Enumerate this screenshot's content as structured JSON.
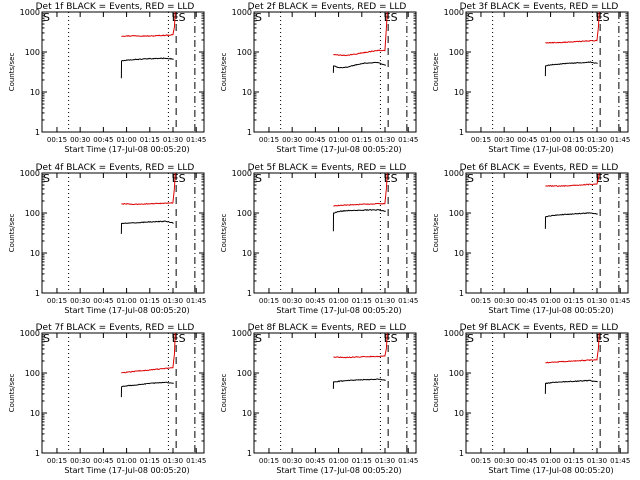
{
  "figure": {
    "background": "#ffffff",
    "axis_color": "#000000",
    "colors": {
      "events": "#000000",
      "lld": "#dd0000"
    }
  },
  "chart_data": [
    {
      "type": "line",
      "panel": 1,
      "title": "Det 1f BLACK = Events, RED = LLD",
      "xlabel": "Start Time (17-Jul-08 00:05:20)",
      "ylabel": "Counts/sec",
      "x_unit": "minutes after 00:05:20",
      "xlim": [
        0,
        104.7
      ],
      "ylim": [
        1,
        1000
      ],
      "yscale": "log",
      "x_tick_labels": [
        "00:15",
        "00:30",
        "00:45",
        "01:00",
        "01:15",
        "01:30",
        "01:45"
      ],
      "y_tick_labels": [
        "1",
        "10",
        "100",
        "1000"
      ],
      "markers": [
        {
          "x": 0,
          "label": "S"
        },
        {
          "x": 87.7,
          "label": "ES"
        }
      ],
      "vlines": [
        {
          "x": 0,
          "style": "dashed"
        },
        {
          "x": 17.2,
          "style": "dotted"
        },
        {
          "x": 81.7,
          "style": "dotted"
        },
        {
          "x": 86.7,
          "style": "dashed"
        },
        {
          "x": 98.8,
          "style": "dashdot"
        }
      ],
      "series": [
        {
          "name": "LLD",
          "color": "red",
          "x": [
            51.3,
            60,
            70,
            80,
            84.6,
            85.6,
            86.1
          ],
          "y": [
            250,
            255,
            250,
            262,
            270,
            420,
            1000
          ]
        },
        {
          "name": "Events",
          "color": "black",
          "x": [
            51.3,
            51.4,
            55,
            60,
            70,
            80,
            85.1
          ],
          "y": [
            22,
            60,
            62,
            65,
            68,
            70,
            66
          ]
        }
      ]
    },
    {
      "type": "line",
      "panel": 2,
      "title": "Det 2f BLACK = Events, RED = LLD",
      "xlabel": "Start Time (17-Jul-08 00:05:20)",
      "ylabel": "Counts/sec",
      "x_unit": "minutes after 00:05:20",
      "xlim": [
        0,
        104.7
      ],
      "ylim": [
        1,
        1000
      ],
      "yscale": "log",
      "x_tick_labels": [
        "00:15",
        "00:30",
        "00:45",
        "01:00",
        "01:15",
        "01:30",
        "01:45"
      ],
      "y_tick_labels": [
        "1",
        "10",
        "100",
        "1000"
      ],
      "markers": [
        {
          "x": 0,
          "label": "S"
        },
        {
          "x": 87.7,
          "label": "ES"
        }
      ],
      "vlines": [
        {
          "x": 0,
          "style": "dashed"
        },
        {
          "x": 17.2,
          "style": "dotted"
        },
        {
          "x": 81.7,
          "style": "dotted"
        },
        {
          "x": 86.7,
          "style": "dashed"
        },
        {
          "x": 98.8,
          "style": "dashdot"
        }
      ],
      "series": [
        {
          "name": "LLD",
          "color": "red",
          "x": [
            51.3,
            60,
            70,
            80,
            84.6,
            85.6,
            86.1
          ],
          "y": [
            85,
            82,
            95,
            110,
            108,
            420,
            1000
          ]
        },
        {
          "name": "Events",
          "color": "black",
          "x": [
            51.3,
            51.4,
            55,
            60,
            70,
            80,
            85.1
          ],
          "y": [
            30,
            45,
            40,
            42,
            52,
            55,
            46
          ]
        }
      ]
    },
    {
      "type": "line",
      "panel": 3,
      "title": "Det 3f BLACK = Events, RED = LLD",
      "xlabel": "Start Time (17-Jul-08 00:05:20)",
      "ylabel": "Counts/sec",
      "x_unit": "minutes after 00:05:20",
      "xlim": [
        0,
        104.7
      ],
      "ylim": [
        1,
        1000
      ],
      "yscale": "log",
      "x_tick_labels": [
        "00:15",
        "00:30",
        "00:45",
        "01:00",
        "01:15",
        "01:30",
        "01:45"
      ],
      "y_tick_labels": [
        "1",
        "10",
        "100",
        "1000"
      ],
      "markers": [
        {
          "x": 0,
          "label": "S"
        },
        {
          "x": 87.7,
          "label": "ES"
        }
      ],
      "vlines": [
        {
          "x": 0,
          "style": "dashed"
        },
        {
          "x": 17.2,
          "style": "dotted"
        },
        {
          "x": 81.7,
          "style": "dotted"
        },
        {
          "x": 86.7,
          "style": "dashed"
        },
        {
          "x": 98.8,
          "style": "dashdot"
        }
      ],
      "series": [
        {
          "name": "LLD",
          "color": "red",
          "x": [
            51.3,
            60,
            70,
            80,
            84.6,
            85.6,
            86.1
          ],
          "y": [
            170,
            172,
            180,
            190,
            192,
            420,
            1000
          ]
        },
        {
          "name": "Events",
          "color": "black",
          "x": [
            51.3,
            51.4,
            55,
            60,
            70,
            80,
            85.1
          ],
          "y": [
            25,
            45,
            48,
            50,
            53,
            56,
            52
          ]
        }
      ]
    },
    {
      "type": "line",
      "panel": 4,
      "title": "Det 4f BLACK = Events, RED = LLD",
      "xlabel": "Start Time (17-Jul-08 00:05:20)",
      "ylabel": "Counts/sec",
      "x_unit": "minutes after 00:05:20",
      "xlim": [
        0,
        104.7
      ],
      "ylim": [
        1,
        1000
      ],
      "yscale": "log",
      "x_tick_labels": [
        "00:15",
        "00:30",
        "00:45",
        "01:00",
        "01:15",
        "01:30",
        "01:45"
      ],
      "y_tick_labels": [
        "1",
        "10",
        "100",
        "1000"
      ],
      "markers": [
        {
          "x": 0,
          "label": "S"
        },
        {
          "x": 87.7,
          "label": "ES"
        }
      ],
      "vlines": [
        {
          "x": 0,
          "style": "dashed"
        },
        {
          "x": 17.2,
          "style": "dotted"
        },
        {
          "x": 81.7,
          "style": "dotted"
        },
        {
          "x": 86.7,
          "style": "dashed"
        },
        {
          "x": 98.8,
          "style": "dashdot"
        }
      ],
      "series": [
        {
          "name": "LLD",
          "color": "red",
          "x": [
            51.3,
            60,
            70,
            80,
            84.6,
            85.6,
            86.1
          ],
          "y": [
            170,
            165,
            170,
            175,
            180,
            420,
            1000
          ]
        },
        {
          "name": "Events",
          "color": "black",
          "x": [
            51.3,
            51.4,
            55,
            60,
            70,
            80,
            85.1
          ],
          "y": [
            30,
            55,
            55,
            57,
            60,
            62,
            56
          ]
        }
      ]
    },
    {
      "type": "line",
      "panel": 5,
      "title": "Det 5f BLACK = Events, RED = LLD",
      "xlabel": "Start Time (17-Jul-08 00:05:20)",
      "ylabel": "Counts/sec",
      "x_unit": "minutes after 00:05:20",
      "xlim": [
        0,
        104.7
      ],
      "ylim": [
        1,
        1000
      ],
      "yscale": "log",
      "x_tick_labels": [
        "00:15",
        "00:30",
        "00:45",
        "01:00",
        "01:15",
        "01:30",
        "01:45"
      ],
      "y_tick_labels": [
        "1",
        "10",
        "100",
        "1000"
      ],
      "markers": [
        {
          "x": 0,
          "label": "S"
        },
        {
          "x": 87.7,
          "label": "ES"
        }
      ],
      "vlines": [
        {
          "x": 0,
          "style": "dashed"
        },
        {
          "x": 17.2,
          "style": "dotted"
        },
        {
          "x": 81.7,
          "style": "dotted"
        },
        {
          "x": 86.7,
          "style": "dashed"
        },
        {
          "x": 98.8,
          "style": "dashdot"
        }
      ],
      "series": [
        {
          "name": "LLD",
          "color": "red",
          "x": [
            51.3,
            60,
            70,
            80,
            84.6,
            85.6,
            86.1
          ],
          "y": [
            150,
            158,
            165,
            170,
            172,
            420,
            1000
          ]
        },
        {
          "name": "Events",
          "color": "black",
          "x": [
            51.3,
            51.4,
            55,
            60,
            70,
            80,
            85.1
          ],
          "y": [
            35,
            100,
            110,
            115,
            118,
            120,
            110
          ]
        }
      ]
    },
    {
      "type": "line",
      "panel": 6,
      "title": "Det 6f BLACK = Events, RED = LLD",
      "xlabel": "Start Time (17-Jul-08 00:05:20)",
      "ylabel": "Counts/sec",
      "x_unit": "minutes after 00:05:20",
      "xlim": [
        0,
        104.7
      ],
      "ylim": [
        1,
        1000
      ],
      "yscale": "log",
      "x_tick_labels": [
        "00:15",
        "00:30",
        "00:45",
        "01:00",
        "01:15",
        "01:30",
        "01:45"
      ],
      "y_tick_labels": [
        "1",
        "10",
        "100",
        "1000"
      ],
      "markers": [
        {
          "x": 0,
          "label": "S"
        },
        {
          "x": 87.7,
          "label": "ES"
        }
      ],
      "vlines": [
        {
          "x": 0,
          "style": "dashed"
        },
        {
          "x": 17.2,
          "style": "dotted"
        },
        {
          "x": 81.7,
          "style": "dotted"
        },
        {
          "x": 86.7,
          "style": "dashed"
        },
        {
          "x": 98.8,
          "style": "dashdot"
        }
      ],
      "series": [
        {
          "name": "LLD",
          "color": "red",
          "x": [
            51.3,
            60,
            70,
            80,
            84.6,
            85.6,
            86.1
          ],
          "y": [
            480,
            470,
            490,
            520,
            530,
            720,
            1000
          ]
        },
        {
          "name": "Events",
          "color": "black",
          "x": [
            51.3,
            51.4,
            55,
            60,
            70,
            80,
            85.1
          ],
          "y": [
            40,
            80,
            85,
            90,
            95,
            100,
            95
          ]
        }
      ]
    },
    {
      "type": "line",
      "panel": 7,
      "title": "Det 7f BLACK = Events, RED = LLD",
      "xlabel": "Start Time (17-Jul-08 00:05:20)",
      "ylabel": "Counts/sec",
      "x_unit": "minutes after 00:05:20",
      "xlim": [
        0,
        104.7
      ],
      "ylim": [
        1,
        1000
      ],
      "yscale": "log",
      "x_tick_labels": [
        "00:15",
        "00:30",
        "00:45",
        "01:00",
        "01:15",
        "01:30",
        "01:45"
      ],
      "y_tick_labels": [
        "1",
        "10",
        "100",
        "1000"
      ],
      "markers": [
        {
          "x": 0,
          "label": "S"
        },
        {
          "x": 87.7,
          "label": "ES"
        }
      ],
      "vlines": [
        {
          "x": 0,
          "style": "dashed"
        },
        {
          "x": 17.2,
          "style": "dotted"
        },
        {
          "x": 81.7,
          "style": "dotted"
        },
        {
          "x": 86.7,
          "style": "dashed"
        },
        {
          "x": 98.8,
          "style": "dashdot"
        }
      ],
      "series": [
        {
          "name": "LLD",
          "color": "red",
          "x": [
            51.3,
            60,
            70,
            80,
            84.6,
            85.6,
            86.1
          ],
          "y": [
            100,
            110,
            120,
            130,
            135,
            300,
            1000
          ]
        },
        {
          "name": "Events",
          "color": "black",
          "x": [
            51.3,
            51.4,
            55,
            60,
            70,
            80,
            85.1
          ],
          "y": [
            25,
            45,
            48,
            50,
            55,
            58,
            55
          ]
        }
      ]
    },
    {
      "type": "line",
      "panel": 8,
      "title": "Det 8f BLACK = Events, RED = LLD",
      "xlabel": "Start Time (17-Jul-08 00:05:20)",
      "ylabel": "Counts/sec",
      "x_unit": "minutes after 00:05:20",
      "xlim": [
        0,
        104.7
      ],
      "ylim": [
        1,
        1000
      ],
      "yscale": "log",
      "x_tick_labels": [
        "00:15",
        "00:30",
        "00:45",
        "01:00",
        "01:15",
        "01:30",
        "01:45"
      ],
      "y_tick_labels": [
        "1",
        "10",
        "100",
        "1000"
      ],
      "markers": [
        {
          "x": 0,
          "label": "S"
        },
        {
          "x": 87.7,
          "label": "ES"
        }
      ],
      "vlines": [
        {
          "x": 0,
          "style": "dashed"
        },
        {
          "x": 17.2,
          "style": "dotted"
        },
        {
          "x": 81.7,
          "style": "dotted"
        },
        {
          "x": 86.7,
          "style": "dashed"
        },
        {
          "x": 98.8,
          "style": "dashdot"
        }
      ],
      "series": [
        {
          "name": "LLD",
          "color": "red",
          "x": [
            51.3,
            60,
            70,
            80,
            84.6,
            85.6,
            86.1
          ],
          "y": [
            250,
            245,
            255,
            260,
            265,
            420,
            1000
          ]
        },
        {
          "name": "Events",
          "color": "black",
          "x": [
            51.3,
            51.4,
            55,
            60,
            70,
            80,
            85.1
          ],
          "y": [
            40,
            60,
            62,
            65,
            68,
            70,
            66
          ]
        }
      ]
    },
    {
      "type": "line",
      "panel": 9,
      "title": "Det 9f BLACK = Events, RED = LLD",
      "xlabel": "Start Time (17-Jul-08 00:05:20)",
      "ylabel": "Counts/sec",
      "x_unit": "minutes after 00:05:20",
      "xlim": [
        0,
        104.7
      ],
      "ylim": [
        1,
        1000
      ],
      "yscale": "log",
      "x_tick_labels": [
        "00:15",
        "00:30",
        "00:45",
        "01:00",
        "01:15",
        "01:30",
        "01:45"
      ],
      "y_tick_labels": [
        "1",
        "10",
        "100",
        "1000"
      ],
      "markers": [
        {
          "x": 0,
          "label": "S"
        },
        {
          "x": 87.7,
          "label": "ES"
        }
      ],
      "vlines": [
        {
          "x": 0,
          "style": "dashed"
        },
        {
          "x": 17.2,
          "style": "dotted"
        },
        {
          "x": 81.7,
          "style": "dotted"
        },
        {
          "x": 86.7,
          "style": "dashed"
        },
        {
          "x": 98.8,
          "style": "dashdot"
        }
      ],
      "series": [
        {
          "name": "LLD",
          "color": "red",
          "x": [
            51.3,
            60,
            70,
            80,
            84.6,
            85.6,
            86.1
          ],
          "y": [
            180,
            190,
            200,
            210,
            212,
            420,
            1000
          ]
        },
        {
          "name": "Events",
          "color": "black",
          "x": [
            51.3,
            51.4,
            55,
            60,
            70,
            80,
            85.1
          ],
          "y": [
            30,
            55,
            57,
            60,
            62,
            65,
            60
          ]
        }
      ]
    }
  ]
}
